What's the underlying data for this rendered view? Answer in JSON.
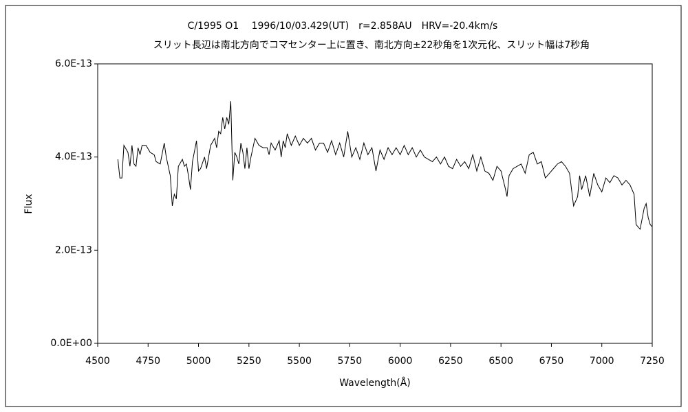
{
  "chart_data": {
    "type": "line",
    "title": "C/1995 O1　 1996/10/03.429(UT)　r=2.858AU　HRV=-20.4km/s",
    "subtitle": "スリット長辺は南北方向でコマセンター上に置き、南北方向±22秒角を1次元化、スリット幅は7秒角",
    "x_label": "Wavelength(Å)",
    "y_label": "Flux",
    "xlim": [
      4500,
      7250
    ],
    "xticks": [
      4500,
      4750,
      5000,
      5250,
      5500,
      5750,
      6000,
      6250,
      6500,
      6750,
      7000,
      7250
    ],
    "ylim": [
      0,
      6e-13
    ],
    "yticks": [
      {
        "value": 0,
        "label": "0.0E+00"
      },
      {
        "value": 2e-13,
        "label": "2.0E-13"
      },
      {
        "value": 4e-13,
        "label": "4.0E-13"
      },
      {
        "value": 6e-13,
        "label": "6.0E-13"
      }
    ],
    "grid": false,
    "series": [
      {
        "color": "#000000",
        "x": [
          4600,
          4610,
          4620,
          4630,
          4650,
          4660,
          4670,
          4680,
          4690,
          4700,
          4710,
          4720,
          4740,
          4760,
          4780,
          4790,
          4810,
          4830,
          4840,
          4860,
          4870,
          4880,
          4890,
          4900,
          4920,
          4930,
          4940,
          4950,
          4960,
          4970,
          4990,
          5000,
          5010,
          5030,
          5040,
          5060,
          5080,
          5090,
          5100,
          5110,
          5120,
          5130,
          5140,
          5150,
          5160,
          5170,
          5180,
          5190,
          5200,
          5210,
          5220,
          5230,
          5240,
          5250,
          5260,
          5280,
          5300,
          5320,
          5340,
          5350,
          5360,
          5380,
          5400,
          5410,
          5420,
          5430,
          5440,
          5460,
          5480,
          5500,
          5520,
          5540,
          5560,
          5580,
          5600,
          5620,
          5640,
          5660,
          5680,
          5700,
          5720,
          5740,
          5760,
          5780,
          5800,
          5820,
          5840,
          5860,
          5880,
          5900,
          5920,
          5940,
          5960,
          5980,
          6000,
          6020,
          6040,
          6060,
          6080,
          6100,
          6120,
          6140,
          6160,
          6180,
          6200,
          6220,
          6240,
          6260,
          6280,
          6300,
          6320,
          6340,
          6360,
          6380,
          6400,
          6420,
          6440,
          6460,
          6480,
          6500,
          6520,
          6530,
          6540,
          6560,
          6580,
          6600,
          6620,
          6640,
          6660,
          6680,
          6700,
          6720,
          6740,
          6760,
          6780,
          6800,
          6820,
          6840,
          6860,
          6880,
          6890,
          6900,
          6920,
          6940,
          6960,
          6980,
          7000,
          7020,
          7040,
          7060,
          7080,
          7100,
          7120,
          7140,
          7160,
          7170,
          7190,
          7210,
          7220,
          7230,
          7240,
          7250
        ],
        "values": [
          3.95e-13,
          3.55e-13,
          3.55e-13,
          4.25e-13,
          4.1e-13,
          3.8e-13,
          4.25e-13,
          3.85e-13,
          3.8e-13,
          4.2e-13,
          4.05e-13,
          4.25e-13,
          4.25e-13,
          4.1e-13,
          4.05e-13,
          3.9e-13,
          3.85e-13,
          4.3e-13,
          4e-13,
          3.6e-13,
          2.95e-13,
          3.2e-13,
          3.1e-13,
          3.8e-13,
          3.95e-13,
          3.8e-13,
          3.85e-13,
          3.6e-13,
          3.3e-13,
          3.9e-13,
          4.35e-13,
          3.7e-13,
          3.75e-13,
          4e-13,
          3.75e-13,
          4.25e-13,
          4.4e-13,
          4.2e-13,
          4.55e-13,
          4.5e-13,
          4.85e-13,
          4.6e-13,
          4.85e-13,
          4.7e-13,
          5.2e-13,
          3.5e-13,
          4.1e-13,
          4e-13,
          3.85e-13,
          4.3e-13,
          4.1e-13,
          3.75e-13,
          4.2e-13,
          3.75e-13,
          4e-13,
          4.4e-13,
          4.25e-13,
          4.2e-13,
          4.2e-13,
          4.05e-13,
          4.3e-13,
          4.15e-13,
          4.35e-13,
          4e-13,
          4.35e-13,
          4.2e-13,
          4.5e-13,
          4.25e-13,
          4.45e-13,
          4.25e-13,
          4.4e-13,
          4.3e-13,
          4.4e-13,
          4.15e-13,
          4.3e-13,
          4.3e-13,
          4.1e-13,
          4.35e-13,
          4.05e-13,
          4.3e-13,
          4e-13,
          4.55e-13,
          4e-13,
          4.2e-13,
          3.95e-13,
          4.3e-13,
          4.05e-13,
          4.2e-13,
          3.7e-13,
          4.15e-13,
          3.95e-13,
          4.2e-13,
          4.05e-13,
          4.2e-13,
          4.05e-13,
          4.25e-13,
          4.05e-13,
          4.2e-13,
          4e-13,
          4.15e-13,
          4e-13,
          3.95e-13,
          3.9e-13,
          4e-13,
          3.85e-13,
          4e-13,
          3.8e-13,
          3.75e-13,
          3.95e-13,
          3.8e-13,
          3.9e-13,
          3.75e-13,
          4.05e-13,
          3.7e-13,
          4e-13,
          3.7e-13,
          3.65e-13,
          3.5e-13,
          3.8e-13,
          3.7e-13,
          3.35e-13,
          3.15e-13,
          3.6e-13,
          3.75e-13,
          3.8e-13,
          3.85e-13,
          3.65e-13,
          4.05e-13,
          4.1e-13,
          3.85e-13,
          3.9e-13,
          3.55e-13,
          3.65e-13,
          3.75e-13,
          3.85e-13,
          3.9e-13,
          3.8e-13,
          3.65e-13,
          2.95e-13,
          3.15e-13,
          3.6e-13,
          3.3e-13,
          3.6e-13,
          3.15e-13,
          3.65e-13,
          3.4e-13,
          3.25e-13,
          3.55e-13,
          3.45e-13,
          3.6e-13,
          3.55e-13,
          3.4e-13,
          3.5e-13,
          3.4e-13,
          3.2e-13,
          2.55e-13,
          2.45e-13,
          2.9e-13,
          3e-13,
          2.7e-13,
          2.55e-13,
          2.5e-13
        ]
      }
    ]
  }
}
